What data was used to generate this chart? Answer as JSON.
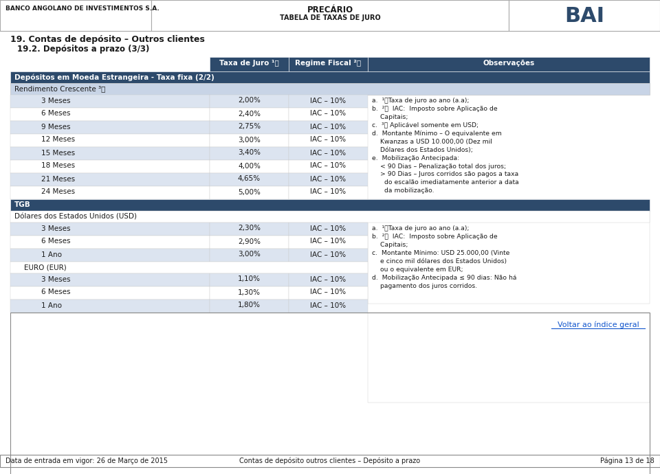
{
  "title1": "19. Contas de depósito – Outros clientes",
  "title2": "19.2. Depósitos a prazo (3/3)",
  "header_left": "BANCO ANGOLANO DE INVESTIMENTOS S.A.",
  "header_center1": "PRECÁRIO",
  "header_center2": "TABELA DE TAXAS DE JURO",
  "section1_title": "Depósitos em Moeda Estrangeira - Taxa fixa (2/2)",
  "rendimento_title": "Rendimento Crescente ³⦴",
  "section1_rows": [
    [
      "3 Meses",
      "2,00%",
      "IAC – 10%"
    ],
    [
      "6 Meses",
      "2,40%",
      "IAC – 10%"
    ],
    [
      "9 Meses",
      "2,75%",
      "IAC – 10%"
    ],
    [
      "12 Meses",
      "3,00%",
      "IAC – 10%"
    ],
    [
      "15 Meses",
      "3,40%",
      "IAC – 10%"
    ],
    [
      "18 Meses",
      "4,00%",
      "IAC – 10%"
    ],
    [
      "21 Meses",
      "4,65%",
      "IAC – 10%"
    ],
    [
      "24 Meses",
      "5,00%",
      "IAC – 10%"
    ]
  ],
  "tgb_title": "TGB",
  "usd_title": "Dólares dos Estados Unidos (USD)",
  "usd_rows": [
    [
      "3 Meses",
      "2,30%",
      "IAC – 10%"
    ],
    [
      "6 Meses",
      "2,90%",
      "IAC – 10%"
    ],
    [
      "1 Ano",
      "3,00%",
      "IAC – 10%"
    ]
  ],
  "eur_title": "EURO (EUR)",
  "eur_rows": [
    [
      "3 Meses",
      "1,10%",
      "IAC – 10%"
    ],
    [
      "6 Meses",
      "1,30%",
      "IAC – 10%"
    ],
    [
      "1 Ano",
      "1,80%",
      "IAC – 10%"
    ]
  ],
  "footer_left": "Data de entrada em vigor: 26 de Março de 2015",
  "footer_center": "Contas de depósito outros clientes – Depósito a prazo",
  "footer_right": "Página 13 de 18",
  "voltar": "Voltar ao índice geral",
  "dark_navy": "#2d4a6b",
  "light_blue_header": "#4a6d9c",
  "subheader_bg": "#c8d4e6",
  "row_odd_bg": "#dce4f0",
  "row_even_bg": "#ffffff",
  "border_color": "#999999",
  "white": "#ffffff",
  "dark_text": "#1a1a1a",
  "blue_link": "#1155cc"
}
